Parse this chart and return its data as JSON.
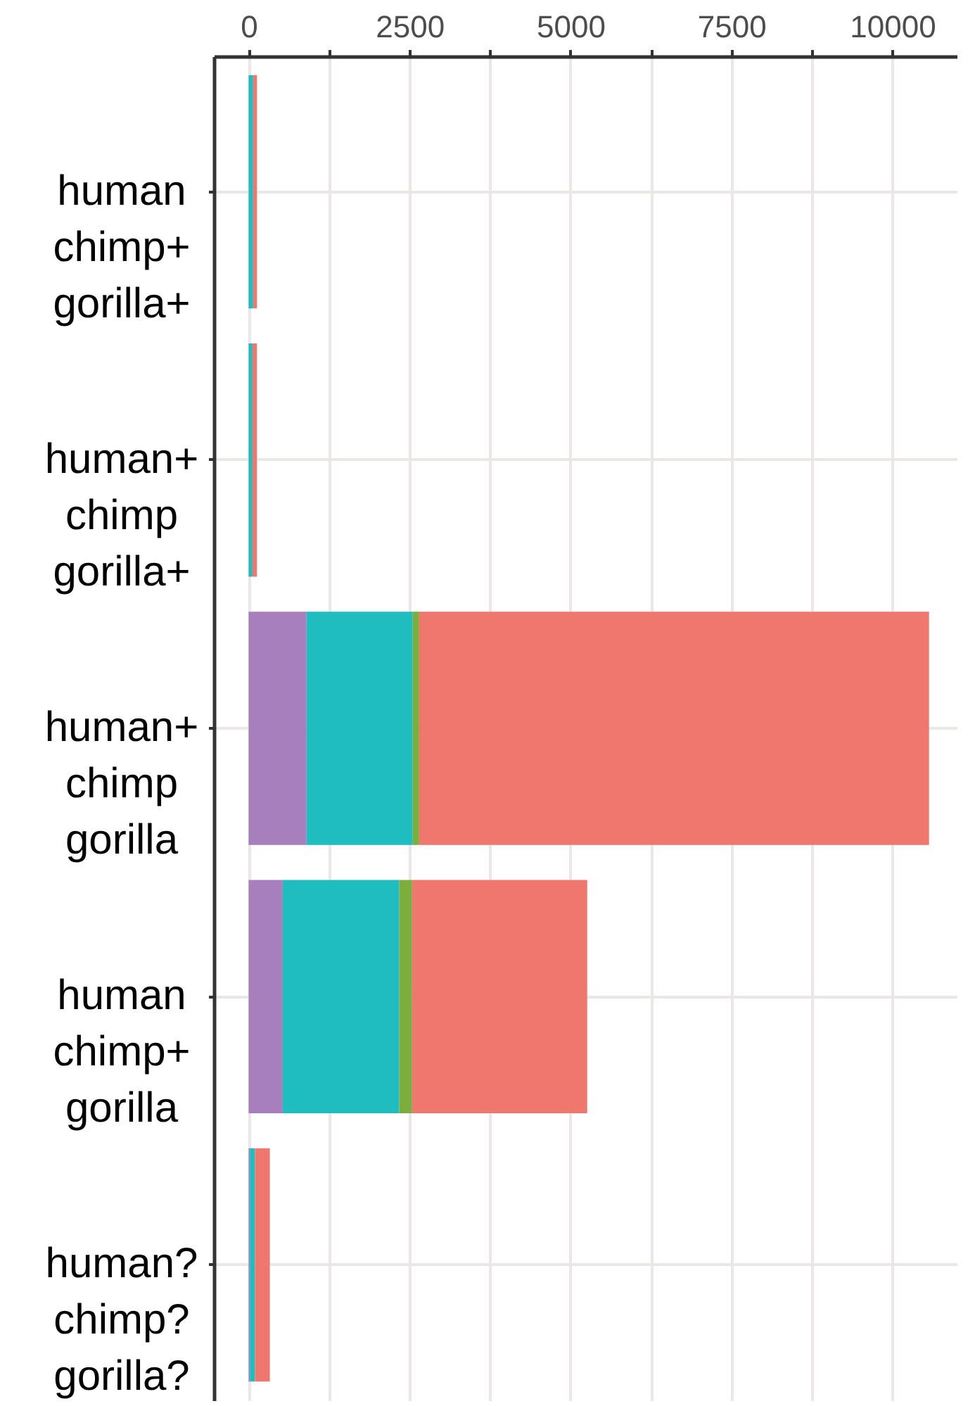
{
  "chart_data": {
    "type": "bar",
    "orientation": "horizontal",
    "stacked": true,
    "categories": [
      "human\nchimp+\ngorilla+",
      "human+\nchimp\ngorilla+",
      "human+\nchimp\ngorilla",
      "human\nchimp+\ngorilla",
      "human?\nchimp?\ngorilla?"
    ],
    "series": [
      {
        "color": "#a87fbd",
        "values": [
          0,
          0,
          900,
          530,
          20
        ]
      },
      {
        "color": "#1fbcc0",
        "values": [
          70,
          60,
          1650,
          1810,
          80
        ]
      },
      {
        "color": "#7cae3e",
        "values": [
          0,
          0,
          100,
          200,
          0
        ]
      },
      {
        "color": "#f0776d",
        "values": [
          60,
          70,
          7920,
          2720,
          230
        ]
      }
    ],
    "xlim": [
      -540,
      11000
    ],
    "xticks": [
      0,
      {
        "value": 1250,
        "label": null
      },
      2500,
      {
        "value": 3750,
        "label": null
      },
      5000,
      {
        "value": 6250,
        "label": null
      },
      7500,
      {
        "value": 8750,
        "label": null
      },
      10000
    ],
    "grid": true
  }
}
